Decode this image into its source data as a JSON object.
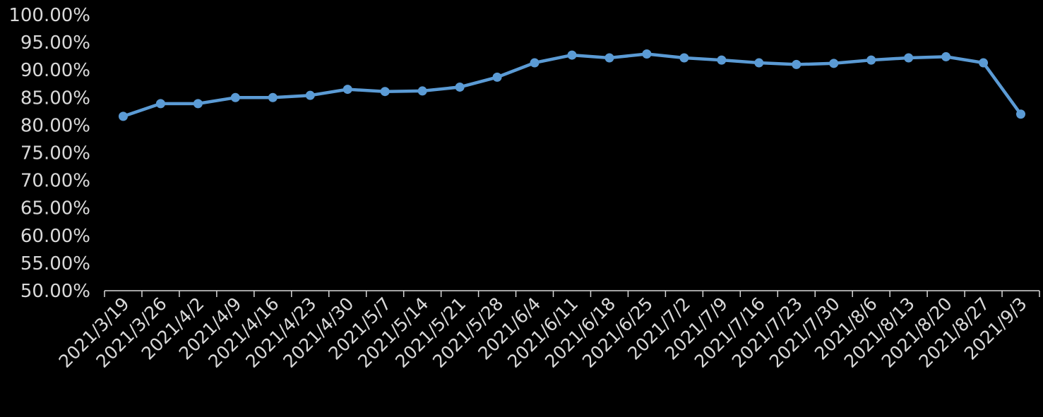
{
  "colors": {
    "background": "#000000",
    "line": "#5b9bd5",
    "axis": "#d9d9d9",
    "text": "#d9d9d9"
  },
  "chart_data": {
    "type": "line",
    "title": "",
    "xlabel": "",
    "ylabel": "",
    "grid": false,
    "legend": "none",
    "ylim": [
      0.5,
      1.0
    ],
    "y_ticks": [
      "100.00%",
      "95.00%",
      "90.00%",
      "85.00%",
      "80.00%",
      "75.00%",
      "70.00%",
      "65.00%",
      "60.00%",
      "55.00%",
      "50.00%"
    ],
    "categories": [
      "2021/3/19",
      "2021/3/26",
      "2021/4/2",
      "2021/4/9",
      "2021/4/16",
      "2021/4/23",
      "2021/4/30",
      "2021/5/7",
      "2021/5/14",
      "2021/5/21",
      "2021/5/28",
      "2021/6/4",
      "2021/6/11",
      "2021/6/18",
      "2021/6/25",
      "2021/7/2",
      "2021/7/9",
      "2021/7/16",
      "2021/7/23",
      "2021/7/30",
      "2021/8/6",
      "2021/8/13",
      "2021/8/20",
      "2021/8/27",
      "2021/9/3"
    ],
    "series": [
      {
        "values": [
          0.816,
          0.839,
          0.839,
          0.85,
          0.85,
          0.854,
          0.865,
          0.861,
          0.862,
          0.869,
          0.887,
          0.913,
          0.927,
          0.922,
          0.929,
          0.922,
          0.918,
          0.913,
          0.91,
          0.912,
          0.918,
          0.922,
          0.924,
          0.913,
          0.82
        ]
      }
    ]
  }
}
